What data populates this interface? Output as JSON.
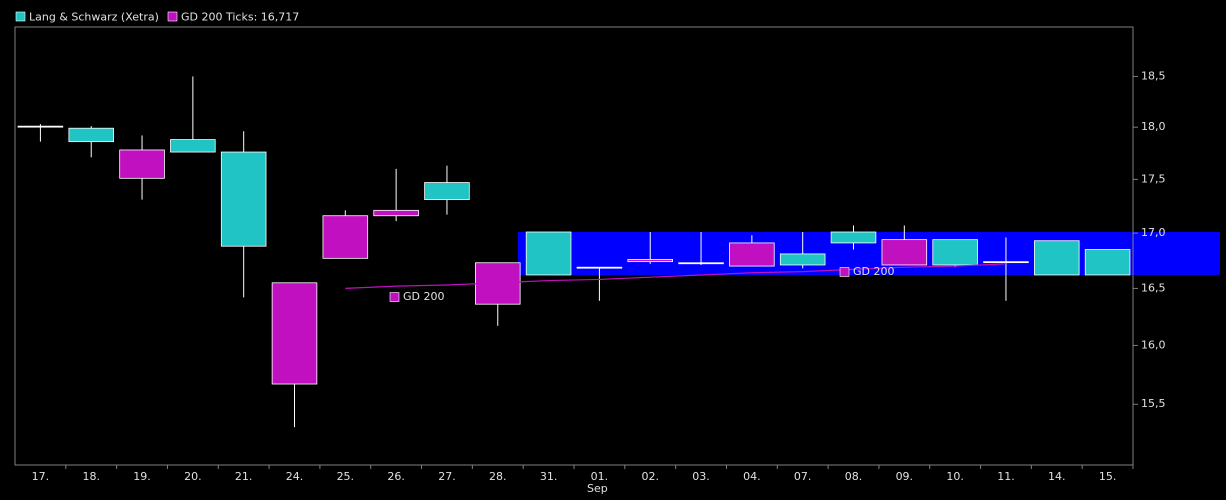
{
  "chart_data": {
    "type": "candlestick",
    "log_scale": true,
    "ylim": [
      15.0,
      19.0
    ],
    "yticks": [
      {
        "value": 15.5,
        "label": "15,5"
      },
      {
        "value": 16.0,
        "label": "16,0"
      },
      {
        "value": 16.5,
        "label": "16,5"
      },
      {
        "value": 17.0,
        "label": "17,0"
      },
      {
        "value": 17.5,
        "label": "17,5"
      },
      {
        "value": 18.0,
        "label": "18,0"
      },
      {
        "value": 18.5,
        "label": "18,5"
      }
    ],
    "categories": [
      "17.",
      "18.",
      "19.",
      "20.",
      "21.",
      "24.",
      "25.",
      "26.",
      "27.",
      "28.",
      "31.",
      "01.",
      "02.",
      "03.",
      "04.",
      "07.",
      "08.",
      "09.",
      "10.",
      "11.",
      "14.",
      "15."
    ],
    "x_sublabel": "Sep",
    "series": [
      {
        "name": "Lang & Schwarz (Xetra)",
        "color": "#20c4c4",
        "down_color": "#c010c0",
        "open": [
          18.01,
          17.86,
          17.78,
          17.76,
          16.88,
          16.55,
          17.16,
          17.21,
          17.31,
          16.73,
          16.62,
          16.69,
          16.76,
          16.73,
          16.91,
          16.71,
          16.91,
          16.94,
          16.71,
          16.74,
          16.62,
          16.62
        ],
        "high": [
          18.03,
          18.01,
          17.92,
          18.5,
          17.96,
          16.55,
          17.21,
          17.6,
          17.63,
          16.73,
          17.01,
          16.69,
          17.01,
          17.01,
          16.98,
          17.01,
          17.07,
          17.07,
          16.94,
          16.96,
          16.93,
          16.85
        ],
        "low": [
          17.86,
          17.71,
          17.31,
          17.76,
          16.42,
          15.31,
          16.77,
          17.11,
          17.17,
          16.17,
          16.62,
          16.39,
          16.72,
          16.71,
          16.7,
          16.68,
          16.85,
          16.71,
          16.69,
          16.39,
          16.62,
          16.62
        ],
        "close": [
          18.01,
          17.99,
          17.51,
          17.88,
          17.76,
          15.67,
          16.77,
          17.16,
          17.47,
          16.36,
          17.01,
          16.69,
          16.74,
          16.73,
          16.7,
          16.81,
          17.01,
          16.71,
          16.94,
          16.74,
          16.93,
          16.85
        ]
      },
      {
        "name": "GD 200 Ticks: 16,717",
        "color": "#c010c0",
        "values": [
          null,
          null,
          null,
          null,
          null,
          null,
          16.5,
          16.52,
          16.53,
          16.55,
          16.57,
          16.58,
          16.6,
          16.62,
          16.64,
          16.65,
          16.67,
          16.69,
          16.7,
          16.72,
          null,
          null
        ]
      }
    ],
    "annotations": [
      "GD 200",
      "GD 200"
    ],
    "highlight_band": {
      "range": [
        16.62,
        17.01
      ],
      "color": "#0000ff"
    }
  }
}
